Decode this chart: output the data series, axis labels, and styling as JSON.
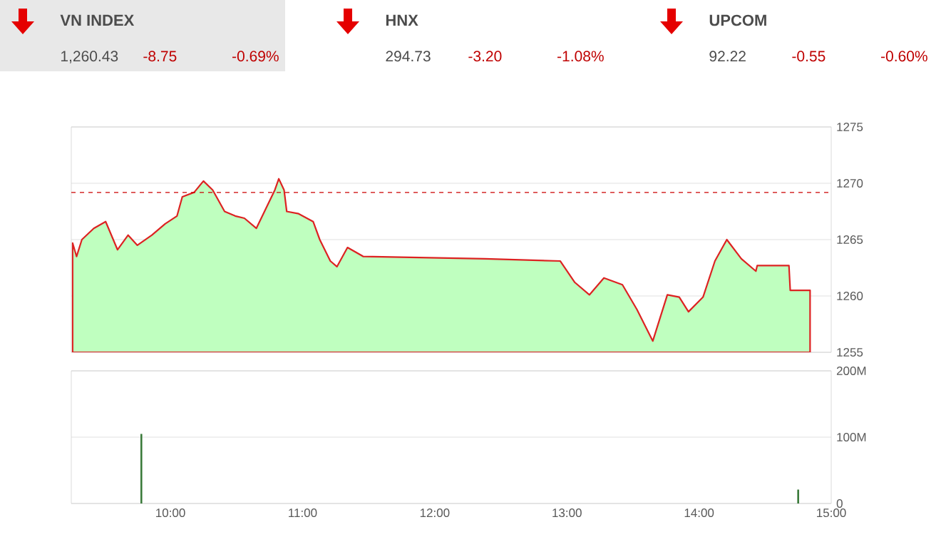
{
  "chart_data": [
    {
      "type": "other",
      "title": "VN INDEX",
      "annotations": [
        "1,260.43",
        "-8.75",
        "-0.69%"
      ]
    },
    {
      "type": "other",
      "title": "HNX",
      "annotations": [
        "294.73",
        "-3.20",
        "-1.08%"
      ]
    },
    {
      "type": "other",
      "title": "UPCOM",
      "annotations": [
        "92.22",
        "-0.55",
        "-0.60%"
      ]
    },
    {
      "type": "area",
      "x": [
        9.26,
        9.29,
        9.33,
        9.42,
        9.51,
        9.6,
        9.68,
        9.75,
        9.86,
        9.96,
        10.05,
        10.09,
        10.18,
        10.25,
        10.32,
        10.41,
        10.49,
        10.56,
        10.65,
        10.72,
        10.79,
        10.82,
        10.86,
        10.88,
        10.97,
        11.08,
        11.13,
        11.21,
        11.26,
        11.34,
        11.46,
        12.38,
        12.95,
        13.06,
        13.17,
        13.28,
        13.42,
        13.53,
        13.65,
        13.76,
        13.85,
        13.92,
        14.03,
        14.12,
        14.21,
        14.32,
        14.43,
        14.44,
        14.68,
        14.69,
        14.84
      ],
      "series": [
        {
          "color": "#dd2222",
          "values": [
            1264.7,
            1263.5,
            1265.0,
            1266.0,
            1266.6,
            1264.1,
            1265.4,
            1264.5,
            1265.4,
            1266.4,
            1267.1,
            1268.8,
            1269.2,
            1270.2,
            1269.4,
            1267.5,
            1267.1,
            1266.9,
            1266.0,
            1267.7,
            1269.4,
            1270.4,
            1269.4,
            1267.5,
            1267.3,
            1266.6,
            1265.0,
            1263.1,
            1262.6,
            1264.3,
            1263.5,
            1263.3,
            1263.1,
            1261.2,
            1260.1,
            1261.6,
            1261.0,
            1258.8,
            1256.0,
            1260.1,
            1259.9,
            1258.6,
            1259.9,
            1263.1,
            1265.0,
            1263.3,
            1262.2,
            1262.7,
            1262.7,
            1260.5,
            1260.5
          ]
        }
      ],
      "xlim": [
        9.25,
        15
      ],
      "ylim": [
        1255,
        1275
      ],
      "yticks": [
        1255,
        1260,
        1265,
        1270,
        1275
      ],
      "grid": "y",
      "tick_labels": "y",
      "ref_lines": [
        {
          "axis": "y",
          "value": 1269.18,
          "color": "#cc0000",
          "line_style": "dashed"
        }
      ]
    },
    {
      "type": "bar",
      "x": [
        9.78,
        14.75
      ],
      "series": [
        {
          "color": "#3a7a3a",
          "values": [
            105,
            21
          ]
        }
      ],
      "xlim": [
        9.25,
        15
      ],
      "xticks": [
        {
          "value": 10,
          "label": "10:00"
        },
        {
          "value": 11,
          "label": "11:00"
        },
        {
          "value": 12,
          "label": "12:00"
        },
        {
          "value": 13,
          "label": "13:00"
        },
        {
          "value": 14,
          "label": "14:00"
        },
        {
          "value": 15,
          "label": "15:00"
        }
      ],
      "ylim": [
        0,
        200
      ],
      "yticks": [
        0,
        {
          "value": 100,
          "label": "100M"
        },
        {
          "value": 200,
          "label": "200M"
        }
      ],
      "grid": "y"
    }
  ]
}
